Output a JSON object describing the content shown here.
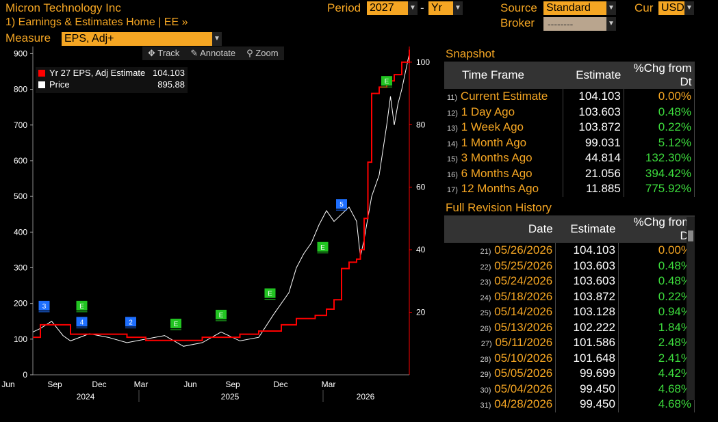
{
  "header": {
    "company": "Micron Technology Inc",
    "breadcrumb": "1) Earnings & Estimates Home | EE »",
    "measure_label": "Measure",
    "measure_value": "EPS, Adj+",
    "period_label": "Period",
    "period_value": "2027",
    "period_type": "Yr",
    "source_label": "Source",
    "source_value": "Standard",
    "cur_label": "Cur",
    "cur_value": "USD",
    "broker_label": "Broker",
    "broker_value": "--------"
  },
  "toolbar": {
    "track": "Track",
    "annotate": "Annotate",
    "zoom": "Zoom"
  },
  "legend": [
    {
      "label": "Yr 27 EPS, Adj Estimate",
      "value": "104.103",
      "color": "#ff0000"
    },
    {
      "label": "Price",
      "value": "895.88",
      "color": "#ffffff"
    }
  ],
  "chart_data": {
    "type": "line",
    "x_months": [
      "Jun",
      "Sep",
      "Dec",
      "Mar",
      "Jun",
      "Sep",
      "Dec",
      "Mar"
    ],
    "x_years": [
      "2024",
      "2025",
      "2026"
    ],
    "left_axis": {
      "ticks": [
        0,
        100,
        200,
        300,
        400,
        500,
        600,
        700,
        800,
        900
      ],
      "range": [
        0,
        920
      ]
    },
    "right_axis": {
      "ticks": [
        20,
        40,
        60,
        80,
        100
      ],
      "range": [
        0,
        105
      ]
    },
    "series": [
      {
        "name": "Price",
        "color": "#ffffff",
        "axis": "left",
        "x": [
          0.0,
          0.02,
          0.05,
          0.08,
          0.1,
          0.15,
          0.2,
          0.25,
          0.3,
          0.35,
          0.4,
          0.45,
          0.5,
          0.55,
          0.6,
          0.64,
          0.68,
          0.7,
          0.72,
          0.74,
          0.76,
          0.78,
          0.8,
          0.82,
          0.84,
          0.86,
          0.87,
          0.88,
          0.9,
          0.92,
          0.94,
          0.95,
          0.96,
          0.97,
          0.98,
          1.0
        ],
        "y": [
          120,
          130,
          150,
          110,
          95,
          115,
          105,
          90,
          100,
          110,
          80,
          90,
          120,
          95,
          105,
          170,
          230,
          300,
          340,
          370,
          420,
          460,
          430,
          450,
          470,
          430,
          330,
          380,
          500,
          560,
          700,
          780,
          700,
          760,
          800,
          900
        ]
      },
      {
        "name": "Yr 27 EPS, Adj Estimate",
        "color": "#ff0000",
        "axis": "right",
        "x": [
          0.0,
          0.02,
          0.04,
          0.1,
          0.15,
          0.25,
          0.3,
          0.4,
          0.45,
          0.5,
          0.55,
          0.6,
          0.66,
          0.7,
          0.75,
          0.78,
          0.8,
          0.82,
          0.84,
          0.86,
          0.87,
          0.88,
          0.89,
          0.9,
          0.92,
          0.94,
          0.96,
          0.98,
          1.0
        ],
        "y": [
          12,
          16,
          16,
          13,
          13,
          12,
          11,
          11,
          12,
          12,
          13,
          14,
          16,
          18,
          19,
          21,
          24,
          34,
          36,
          37,
          40,
          50,
          68,
          90,
          92,
          94,
          96,
          100,
          104
        ]
      }
    ],
    "markers": [
      {
        "label": "3",
        "color": "#1e6fff",
        "x": 0.03,
        "y": 190
      },
      {
        "label": "E",
        "color": "#22c422",
        "x": 0.13,
        "y": 190
      },
      {
        "label": "4",
        "color": "#1e6fff",
        "x": 0.13,
        "y": 145
      },
      {
        "label": "2",
        "color": "#1e6fff",
        "x": 0.26,
        "y": 145
      },
      {
        "label": "E",
        "color": "#22c422",
        "x": 0.38,
        "y": 140
      },
      {
        "label": "E",
        "color": "#22c422",
        "x": 0.5,
        "y": 165
      },
      {
        "label": "E",
        "color": "#22c422",
        "x": 0.63,
        "y": 225
      },
      {
        "label": "E",
        "color": "#22c422",
        "x": 0.77,
        "y": 355
      },
      {
        "label": "5",
        "color": "#1e6fff",
        "x": 0.82,
        "y": 475
      },
      {
        "label": "E",
        "color": "#22c422",
        "x": 0.94,
        "y": 820
      }
    ]
  },
  "snapshot": {
    "title": "Snapshot",
    "headers": [
      "Time Frame",
      "Estimate",
      "%Chg from Dt"
    ],
    "rows": [
      {
        "n": "11)",
        "frame": "Current Estimate",
        "est": "104.103",
        "chg": "0.00%"
      },
      {
        "n": "12)",
        "frame": "1 Day Ago",
        "est": "103.603",
        "chg": "0.48%"
      },
      {
        "n": "13)",
        "frame": "1 Week Ago",
        "est": "103.872",
        "chg": "0.22%"
      },
      {
        "n": "14)",
        "frame": "1 Month Ago",
        "est": "99.031",
        "chg": "5.12%"
      },
      {
        "n": "15)",
        "frame": "3 Months Ago",
        "est": "44.814",
        "chg": "132.30%"
      },
      {
        "n": "16)",
        "frame": "6 Months Ago",
        "est": "21.056",
        "chg": "394.42%"
      },
      {
        "n": "17)",
        "frame": "12 Months Ago",
        "est": "11.885",
        "chg": "775.92%"
      }
    ]
  },
  "history": {
    "title": "Full Revision History",
    "headers": [
      "Date",
      "Estimate",
      "%Chg from Dt"
    ],
    "rows": [
      {
        "n": "21)",
        "date": "05/26/2026",
        "est": "104.103",
        "chg": "0.00%"
      },
      {
        "n": "22)",
        "date": "05/25/2026",
        "est": "103.603",
        "chg": "0.48%"
      },
      {
        "n": "23)",
        "date": "05/24/2026",
        "est": "103.603",
        "chg": "0.48%"
      },
      {
        "n": "24)",
        "date": "05/18/2026",
        "est": "103.872",
        "chg": "0.22%"
      },
      {
        "n": "25)",
        "date": "05/14/2026",
        "est": "103.128",
        "chg": "0.94%"
      },
      {
        "n": "26)",
        "date": "05/13/2026",
        "est": "102.222",
        "chg": "1.84%"
      },
      {
        "n": "27)",
        "date": "05/11/2026",
        "est": "101.586",
        "chg": "2.48%"
      },
      {
        "n": "28)",
        "date": "05/10/2026",
        "est": "101.648",
        "chg": "2.41%"
      },
      {
        "n": "29)",
        "date": "05/05/2026",
        "est": "99.699",
        "chg": "4.42%"
      },
      {
        "n": "30)",
        "date": "05/04/2026",
        "est": "99.450",
        "chg": "4.68%"
      },
      {
        "n": "31)",
        "date": "04/28/2026",
        "est": "99.450",
        "chg": "4.68%"
      }
    ]
  }
}
